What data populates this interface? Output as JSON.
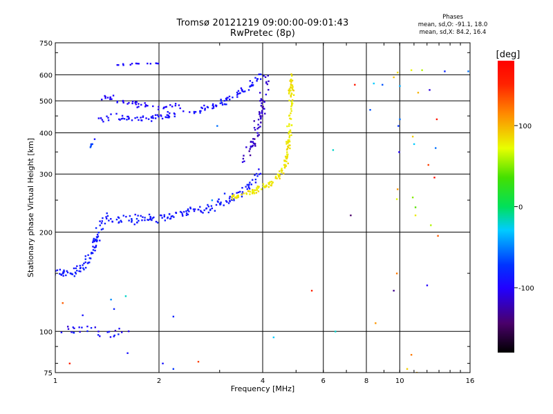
{
  "header": {
    "title_line1": "Tromsø 20121219 09:00:00-09:01:43",
    "title_line2": "RwPretec (8p)"
  },
  "stats": {
    "heading": "Phases",
    "mean_sd_0": "mean, sd,O: -91.1, 18.0",
    "mean_sd_x": "mean, sd,X:  84.2, 16.4"
  },
  "colorbar": {
    "unit_label": "[deg]",
    "ticks": [
      "100",
      "0",
      "-100"
    ],
    "tick_values": [
      100,
      0,
      -100
    ],
    "range": [
      -180,
      180
    ],
    "colormap": "rainbow (black-violet-blue-cyan-green-yellow-red)"
  },
  "chart_data": {
    "type": "scatter",
    "title": "Tromsø 20121219 09:00:00-09:01:43",
    "subtitle": "RwPretec (8p)",
    "xlabel": "Frequency [MHz]",
    "ylabel": "Stationary phase Virtual Height [km]",
    "xscale": "log",
    "yscale": "log",
    "xlim": [
      1,
      16
    ],
    "ylim": [
      75,
      750
    ],
    "xticks": [
      1,
      2,
      4,
      6,
      8,
      10,
      16
    ],
    "xtick_labels": [
      "1",
      "2",
      "4",
      "6",
      "8",
      "10",
      "16"
    ],
    "yticks": [
      75,
      100,
      200,
      300,
      400,
      500,
      600,
      750
    ],
    "ytick_labels": [
      "75",
      "100",
      "200",
      "300",
      "400",
      "500",
      "600",
      "750"
    ],
    "grid": true,
    "color_encoding": "phase in degrees",
    "traces": [
      {
        "curve": [
          [
            1.0,
            150
          ],
          [
            1.15,
            152
          ],
          [
            1.22,
            158
          ],
          [
            1.28,
            175
          ],
          [
            1.32,
            195
          ],
          [
            1.35,
            212
          ],
          [
            1.4,
            220
          ],
          [
            1.55,
            218
          ],
          [
            1.8,
            220
          ],
          [
            2.0,
            222
          ],
          [
            2.3,
            226
          ],
          [
            2.6,
            232
          ],
          [
            2.9,
            240
          ],
          [
            3.2,
            252
          ],
          [
            3.5,
            268
          ],
          [
            3.8,
            288
          ],
          [
            3.95,
            305
          ]
        ],
        "spread": 0.05,
        "n": 230,
        "phase": -95,
        "phase_sd": 8
      },
      {
        "curve": [
          [
            1.35,
            442
          ],
          [
            1.6,
            443
          ],
          [
            1.9,
            446
          ],
          [
            2.2,
            452
          ],
          [
            2.5,
            462
          ],
          [
            2.8,
            478
          ],
          [
            3.1,
            500
          ],
          [
            3.4,
            528
          ],
          [
            3.7,
            560
          ],
          [
            3.95,
            605
          ]
        ],
        "spread": 0.04,
        "n": 130,
        "phase": -100,
        "phase_sd": 8
      },
      {
        "curve": [
          [
            1.38,
            510
          ],
          [
            1.6,
            495
          ],
          [
            1.9,
            482
          ],
          [
            2.1,
            480
          ],
          [
            2.3,
            485
          ]
        ],
        "spread": 0.03,
        "n": 45,
        "phase": -108,
        "phase_sd": 6
      },
      {
        "curve": [
          [
            3.2,
            255
          ],
          [
            3.5,
            260
          ],
          [
            3.8,
            267
          ],
          [
            4.1,
            275
          ],
          [
            4.3,
            285
          ],
          [
            4.5,
            300
          ],
          [
            4.65,
            325
          ],
          [
            4.75,
            360
          ],
          [
            4.8,
            410
          ],
          [
            4.82,
            460
          ],
          [
            4.83,
            520
          ],
          [
            4.85,
            600
          ]
        ],
        "spread": 0.03,
        "n": 170,
        "phase": 82,
        "phase_sd": 8
      },
      {
        "curve": [
          [
            3.55,
            325
          ],
          [
            3.75,
            380
          ],
          [
            3.9,
            430
          ],
          [
            4.0,
            480
          ],
          [
            4.05,
            540
          ],
          [
            4.1,
            600
          ]
        ],
        "spread": 0.05,
        "n": 70,
        "phase": -125,
        "phase_sd": 10
      },
      {
        "curve": [
          [
            1.4,
            640
          ],
          [
            1.7,
            648
          ],
          [
            1.95,
            650
          ],
          [
            2.05,
            645
          ]
        ],
        "spread": 0.01,
        "n": 14,
        "phase": -105,
        "phase_sd": 5
      },
      {
        "curve": [
          [
            1.0,
            98
          ],
          [
            1.25,
            103
          ],
          [
            1.35,
            98
          ],
          [
            1.55,
            101
          ],
          [
            1.62,
            98
          ]
        ],
        "spread": 0.05,
        "n": 28,
        "phase": -100,
        "phase_sd": 20
      },
      {
        "curve": [
          [
            1.25,
            355
          ],
          [
            1.28,
            372
          ]
        ],
        "spread": 0.01,
        "n": 5,
        "phase": -75,
        "phase_sd": 5
      }
    ],
    "scatter_points": [
      {
        "x": 7.4,
        "y": 560,
        "phase": 160
      },
      {
        "x": 8.4,
        "y": 565,
        "phase": -30
      },
      {
        "x": 8.9,
        "y": 560,
        "phase": -70
      },
      {
        "x": 9.6,
        "y": 590,
        "phase": 95
      },
      {
        "x": 9.85,
        "y": 610,
        "phase": 85
      },
      {
        "x": 10.8,
        "y": 620,
        "phase": 75
      },
      {
        "x": 11.6,
        "y": 620,
        "phase": 60
      },
      {
        "x": 13.5,
        "y": 615,
        "phase": -90
      },
      {
        "x": 15.8,
        "y": 615,
        "phase": -60
      },
      {
        "x": 11.3,
        "y": 530,
        "phase": 100
      },
      {
        "x": 12.2,
        "y": 540,
        "phase": -120
      },
      {
        "x": 12.8,
        "y": 440,
        "phase": 160
      },
      {
        "x": 10.0,
        "y": 555,
        "phase": -40
      },
      {
        "x": 10.0,
        "y": 440,
        "phase": -60
      },
      {
        "x": 9.9,
        "y": 420,
        "phase": -80
      },
      {
        "x": 10.9,
        "y": 390,
        "phase": 90
      },
      {
        "x": 11.0,
        "y": 370,
        "phase": -30
      },
      {
        "x": 12.7,
        "y": 360,
        "phase": -60
      },
      {
        "x": 9.95,
        "y": 350,
        "phase": -110
      },
      {
        "x": 12.1,
        "y": 320,
        "phase": 140
      },
      {
        "x": 12.6,
        "y": 293,
        "phase": 170
      },
      {
        "x": 9.85,
        "y": 270,
        "phase": 110
      },
      {
        "x": 9.8,
        "y": 252,
        "phase": 70
      },
      {
        "x": 10.9,
        "y": 255,
        "phase": 50
      },
      {
        "x": 11.1,
        "y": 238,
        "phase": 40
      },
      {
        "x": 12.3,
        "y": 210,
        "phase": 60
      },
      {
        "x": 12.9,
        "y": 195,
        "phase": 130
      },
      {
        "x": 6.4,
        "y": 355,
        "phase": -20
      },
      {
        "x": 7.2,
        "y": 225,
        "phase": -150
      },
      {
        "x": 5.55,
        "y": 133,
        "phase": 150
      },
      {
        "x": 9.8,
        "y": 150,
        "phase": 120
      },
      {
        "x": 12.0,
        "y": 138,
        "phase": -110
      },
      {
        "x": 9.6,
        "y": 133,
        "phase": -140
      },
      {
        "x": 8.5,
        "y": 106,
        "phase": 110
      },
      {
        "x": 6.5,
        "y": 100,
        "phase": -20
      },
      {
        "x": 4.3,
        "y": 96,
        "phase": -30
      },
      {
        "x": 10.5,
        "y": 77,
        "phase": 90
      },
      {
        "x": 10.8,
        "y": 85,
        "phase": 120
      },
      {
        "x": 11.2,
        "y": 75,
        "phase": 100
      },
      {
        "x": 1.1,
        "y": 80,
        "phase": 150
      },
      {
        "x": 2.05,
        "y": 80,
        "phase": -100
      },
      {
        "x": 2.2,
        "y": 77,
        "phase": -80
      },
      {
        "x": 2.6,
        "y": 81,
        "phase": 140
      },
      {
        "x": 1.05,
        "y": 122,
        "phase": 130
      },
      {
        "x": 1.45,
        "y": 125,
        "phase": -50
      },
      {
        "x": 1.6,
        "y": 128,
        "phase": -20
      },
      {
        "x": 1.62,
        "y": 86,
        "phase": -100
      },
      {
        "x": 1.2,
        "y": 112,
        "phase": -100
      },
      {
        "x": 1.48,
        "y": 117,
        "phase": -90
      },
      {
        "x": 2.2,
        "y": 111,
        "phase": -90
      },
      {
        "x": 2.95,
        "y": 420,
        "phase": -60
      },
      {
        "x": 3.1,
        "y": 262,
        "phase": -90
      },
      {
        "x": 2.85,
        "y": 250,
        "phase": -50
      },
      {
        "x": 1.3,
        "y": 383,
        "phase": -100
      },
      {
        "x": 8.2,
        "y": 470,
        "phase": -70
      },
      {
        "x": 11.1,
        "y": 225,
        "phase": 80
      }
    ]
  }
}
